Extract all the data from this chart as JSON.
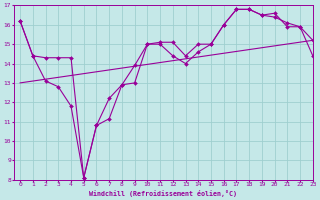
{
  "xlabel": "Windchill (Refroidissement éolien,°C)",
  "xlim": [
    -0.5,
    23
  ],
  "ylim": [
    8,
    17
  ],
  "yticks": [
    8,
    9,
    10,
    11,
    12,
    13,
    14,
    15,
    16,
    17
  ],
  "xticks": [
    0,
    1,
    2,
    3,
    4,
    5,
    6,
    7,
    8,
    9,
    10,
    11,
    12,
    13,
    14,
    15,
    16,
    17,
    18,
    19,
    20,
    21,
    22,
    23
  ],
  "background_color": "#c5e8e8",
  "grid_color": "#9fcfcf",
  "line_color": "#990099",
  "line1": {
    "x": [
      0,
      1,
      2,
      3,
      4,
      5,
      6,
      7,
      8,
      9,
      10,
      11,
      12,
      13,
      14,
      15,
      16,
      17,
      18,
      19,
      20,
      21,
      22,
      23
    ],
    "y": [
      16.2,
      14.4,
      13.1,
      12.8,
      11.8,
      8.1,
      10.8,
      11.15,
      12.9,
      13.0,
      15.0,
      15.0,
      14.4,
      14.0,
      14.6,
      15.0,
      16.0,
      16.8,
      16.8,
      16.5,
      16.4,
      16.1,
      15.9,
      15.2
    ]
  },
  "line2": {
    "x": [
      0,
      1,
      2,
      3,
      4,
      5,
      6,
      7,
      8,
      9,
      10,
      11,
      12,
      13,
      14,
      15,
      16,
      17,
      18,
      19,
      20,
      21,
      22,
      23
    ],
    "y": [
      16.2,
      14.4,
      14.3,
      14.3,
      14.3,
      8.1,
      10.8,
      12.2,
      12.9,
      13.9,
      15.0,
      15.1,
      15.1,
      14.4,
      15.0,
      15.0,
      16.0,
      16.8,
      16.8,
      16.5,
      16.6,
      15.9,
      15.9,
      14.4
    ]
  },
  "line3": {
    "x": [
      0,
      23
    ],
    "y": [
      13.0,
      15.2
    ]
  }
}
